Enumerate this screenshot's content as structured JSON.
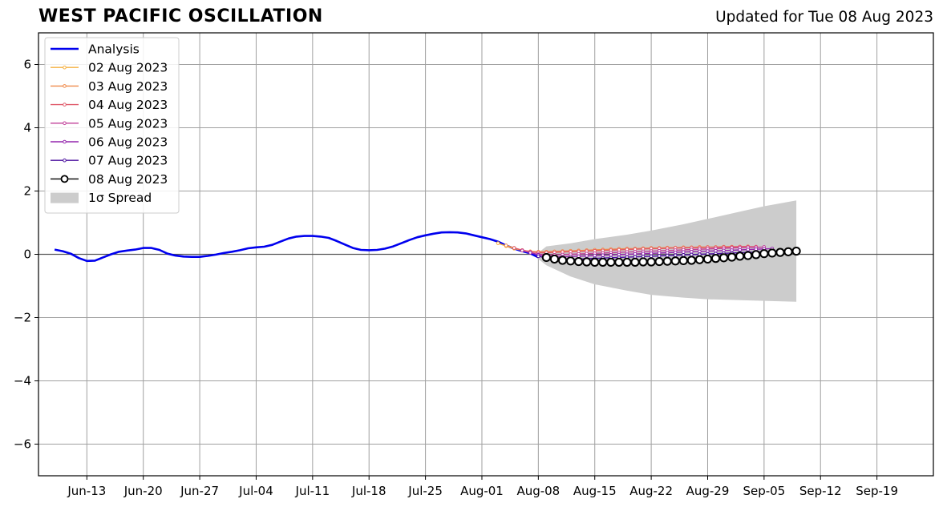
{
  "title": "WEST PACIFIC OSCILLATION",
  "subtitle": "Updated for Tue 08 Aug 2023",
  "chart_data": {
    "type": "line",
    "xlim": [
      "2023-06-07",
      "2023-09-26"
    ],
    "ylim": [
      -7,
      7
    ],
    "grid": true,
    "legend_position": "top-left",
    "x_ticks": [
      {
        "date": "2023-06-13",
        "label": "Jun-13"
      },
      {
        "date": "2023-06-20",
        "label": "Jun-20"
      },
      {
        "date": "2023-06-27",
        "label": "Jun-27"
      },
      {
        "date": "2023-07-04",
        "label": "Jul-04"
      },
      {
        "date": "2023-07-11",
        "label": "Jul-11"
      },
      {
        "date": "2023-07-18",
        "label": "Jul-18"
      },
      {
        "date": "2023-07-25",
        "label": "Jul-25"
      },
      {
        "date": "2023-08-01",
        "label": "Aug-01"
      },
      {
        "date": "2023-08-08",
        "label": "Aug-08"
      },
      {
        "date": "2023-08-15",
        "label": "Aug-15"
      },
      {
        "date": "2023-08-22",
        "label": "Aug-22"
      },
      {
        "date": "2023-08-29",
        "label": "Aug-29"
      },
      {
        "date": "2023-09-05",
        "label": "Sep-05"
      },
      {
        "date": "2023-09-12",
        "label": "Sep-12"
      },
      {
        "date": "2023-09-19",
        "label": "Sep-19"
      }
    ],
    "y_ticks": [
      {
        "value": 6,
        "label": "6"
      },
      {
        "value": 4,
        "label": "4"
      },
      {
        "value": 2,
        "label": "2"
      },
      {
        "value": 0,
        "label": "0"
      },
      {
        "value": -2,
        "label": "−2"
      },
      {
        "value": -4,
        "label": "−4"
      },
      {
        "value": -6,
        "label": "−6"
      }
    ],
    "analysis": {
      "name": "Analysis",
      "color": "#0000ee",
      "points": [
        [
          "2023-06-09",
          0.15
        ],
        [
          "2023-06-10",
          0.1
        ],
        [
          "2023-06-11",
          0.02
        ],
        [
          "2023-06-12",
          -0.12
        ],
        [
          "2023-06-13",
          -0.21
        ],
        [
          "2023-06-14",
          -0.2
        ],
        [
          "2023-06-15",
          -0.1
        ],
        [
          "2023-06-16",
          0.0
        ],
        [
          "2023-06-17",
          0.08
        ],
        [
          "2023-06-18",
          0.12
        ],
        [
          "2023-06-19",
          0.15
        ],
        [
          "2023-06-20",
          0.2
        ],
        [
          "2023-06-21",
          0.2
        ],
        [
          "2023-06-22",
          0.14
        ],
        [
          "2023-06-23",
          0.02
        ],
        [
          "2023-06-24",
          -0.04
        ],
        [
          "2023-06-25",
          -0.07
        ],
        [
          "2023-06-26",
          -0.08
        ],
        [
          "2023-06-27",
          -0.08
        ],
        [
          "2023-06-28",
          -0.05
        ],
        [
          "2023-06-29",
          -0.01
        ],
        [
          "2023-06-30",
          0.04
        ],
        [
          "2023-07-01",
          0.08
        ],
        [
          "2023-07-02",
          0.13
        ],
        [
          "2023-07-03",
          0.19
        ],
        [
          "2023-07-04",
          0.22
        ],
        [
          "2023-07-05",
          0.24
        ],
        [
          "2023-07-06",
          0.3
        ],
        [
          "2023-07-07",
          0.4
        ],
        [
          "2023-07-08",
          0.5
        ],
        [
          "2023-07-09",
          0.56
        ],
        [
          "2023-07-10",
          0.58
        ],
        [
          "2023-07-11",
          0.58
        ],
        [
          "2023-07-12",
          0.56
        ],
        [
          "2023-07-13",
          0.52
        ],
        [
          "2023-07-14",
          0.42
        ],
        [
          "2023-07-15",
          0.31
        ],
        [
          "2023-07-16",
          0.2
        ],
        [
          "2023-07-17",
          0.14
        ],
        [
          "2023-07-18",
          0.13
        ],
        [
          "2023-07-19",
          0.14
        ],
        [
          "2023-07-20",
          0.18
        ],
        [
          "2023-07-21",
          0.25
        ],
        [
          "2023-07-22",
          0.35
        ],
        [
          "2023-07-23",
          0.45
        ],
        [
          "2023-07-24",
          0.54
        ],
        [
          "2023-07-25",
          0.6
        ],
        [
          "2023-07-26",
          0.65
        ],
        [
          "2023-07-27",
          0.69
        ],
        [
          "2023-07-28",
          0.7
        ],
        [
          "2023-07-29",
          0.69
        ],
        [
          "2023-07-30",
          0.66
        ],
        [
          "2023-07-31",
          0.6
        ],
        [
          "2023-08-01",
          0.54
        ],
        [
          "2023-08-02",
          0.48
        ],
        [
          "2023-08-03",
          0.4
        ],
        [
          "2023-08-04",
          0.28
        ],
        [
          "2023-08-05",
          0.18
        ],
        [
          "2023-08-06",
          0.1
        ],
        [
          "2023-08-07",
          0.03
        ],
        [
          "2023-08-08",
          -0.1
        ]
      ]
    },
    "spread": {
      "name": "1σ Spread",
      "color": "#cccccc",
      "upper": [
        [
          "2023-08-08",
          0.05
        ],
        [
          "2023-08-09",
          0.25
        ],
        [
          "2023-08-12",
          0.35
        ],
        [
          "2023-08-15",
          0.48
        ],
        [
          "2023-08-19",
          0.62
        ],
        [
          "2023-08-22",
          0.75
        ],
        [
          "2023-08-26",
          0.95
        ],
        [
          "2023-08-29",
          1.12
        ],
        [
          "2023-09-02",
          1.35
        ],
        [
          "2023-09-05",
          1.52
        ],
        [
          "2023-09-09",
          1.7
        ]
      ],
      "lower": [
        [
          "2023-08-08",
          -0.15
        ],
        [
          "2023-08-09",
          -0.35
        ],
        [
          "2023-08-12",
          -0.7
        ],
        [
          "2023-08-15",
          -0.95
        ],
        [
          "2023-08-19",
          -1.15
        ],
        [
          "2023-08-22",
          -1.28
        ],
        [
          "2023-08-26",
          -1.37
        ],
        [
          "2023-08-29",
          -1.42
        ],
        [
          "2023-09-02",
          -1.45
        ],
        [
          "2023-09-05",
          -1.47
        ],
        [
          "2023-09-09",
          -1.5
        ]
      ]
    },
    "forecasts": [
      {
        "name": "02 Aug 2023",
        "color": "#f5b041",
        "start": "2023-08-03",
        "values": [
          0.35,
          0.26,
          0.18,
          0.13,
          0.09,
          0.07,
          0.07,
          0.08,
          0.09,
          0.1,
          0.11,
          0.12,
          0.13,
          0.14,
          0.15,
          0.16,
          0.17,
          0.17,
          0.18,
          0.18,
          0.19,
          0.19,
          0.2,
          0.2,
          0.21,
          0.21,
          0.22,
          0.22,
          0.22,
          0.23,
          0.23
        ]
      },
      {
        "name": "03 Aug 2023",
        "color": "#f08a4b",
        "start": "2023-08-04",
        "values": [
          0.28,
          0.2,
          0.13,
          0.09,
          0.08,
          0.08,
          0.09,
          0.1,
          0.11,
          0.12,
          0.13,
          0.14,
          0.15,
          0.16,
          0.17,
          0.18,
          0.18,
          0.19,
          0.2,
          0.2,
          0.21,
          0.21,
          0.22,
          0.22,
          0.23,
          0.23,
          0.23,
          0.24,
          0.24,
          0.24,
          0.25
        ]
      },
      {
        "name": "04 Aug 2023",
        "color": "#e05c6c",
        "start": "2023-08-05",
        "values": [
          0.2,
          0.13,
          0.08,
          0.05,
          0.05,
          0.06,
          0.07,
          0.08,
          0.09,
          0.1,
          0.11,
          0.12,
          0.13,
          0.14,
          0.15,
          0.16,
          0.17,
          0.18,
          0.18,
          0.19,
          0.2,
          0.2,
          0.21,
          0.21,
          0.22,
          0.22,
          0.23,
          0.23,
          0.24,
          0.24,
          0.24
        ]
      },
      {
        "name": "05 Aug 2023",
        "color": "#c2409a",
        "start": "2023-08-06",
        "values": [
          0.12,
          0.05,
          0.0,
          -0.02,
          -0.02,
          -0.01,
          0.0,
          0.01,
          0.02,
          0.03,
          0.04,
          0.05,
          0.06,
          0.07,
          0.08,
          0.09,
          0.1,
          0.11,
          0.12,
          0.13,
          0.14,
          0.15,
          0.16,
          0.17,
          0.18,
          0.19,
          0.2,
          0.21,
          0.22,
          0.22,
          0.23
        ]
      },
      {
        "name": "06 Aug 2023",
        "color": "#9426ad",
        "start": "2023-08-07",
        "values": [
          0.05,
          -0.02,
          -0.06,
          -0.08,
          -0.08,
          -0.07,
          -0.06,
          -0.05,
          -0.04,
          -0.03,
          -0.02,
          -0.01,
          0.0,
          0.01,
          0.02,
          0.03,
          0.04,
          0.05,
          0.06,
          0.07,
          0.08,
          0.09,
          0.1,
          0.11,
          0.12,
          0.13,
          0.14,
          0.15,
          0.16,
          0.17,
          0.18
        ]
      },
      {
        "name": "07 Aug 2023",
        "color": "#4a0f9e",
        "start": "2023-08-08",
        "values": [
          -0.06,
          -0.12,
          -0.15,
          -0.16,
          -0.16,
          -0.15,
          -0.14,
          -0.13,
          -0.12,
          -0.11,
          -0.1,
          -0.09,
          -0.08,
          -0.07,
          -0.06,
          -0.05,
          -0.04,
          -0.03,
          -0.02,
          -0.01,
          0.0,
          0.01,
          0.02,
          0.03,
          0.04,
          0.05,
          0.06,
          0.07,
          0.08,
          0.09,
          0.1
        ]
      },
      {
        "name": "08 Aug 2023",
        "color": "#000000",
        "marker": "open-circle",
        "start": "2023-08-09",
        "values": [
          -0.1,
          -0.15,
          -0.19,
          -0.21,
          -0.23,
          -0.24,
          -0.25,
          -0.25,
          -0.25,
          -0.25,
          -0.25,
          -0.25,
          -0.24,
          -0.24,
          -0.23,
          -0.22,
          -0.21,
          -0.2,
          -0.19,
          -0.17,
          -0.15,
          -0.13,
          -0.11,
          -0.09,
          -0.06,
          -0.04,
          -0.01,
          0.02,
          0.04,
          0.06,
          0.08,
          0.1
        ]
      }
    ]
  }
}
